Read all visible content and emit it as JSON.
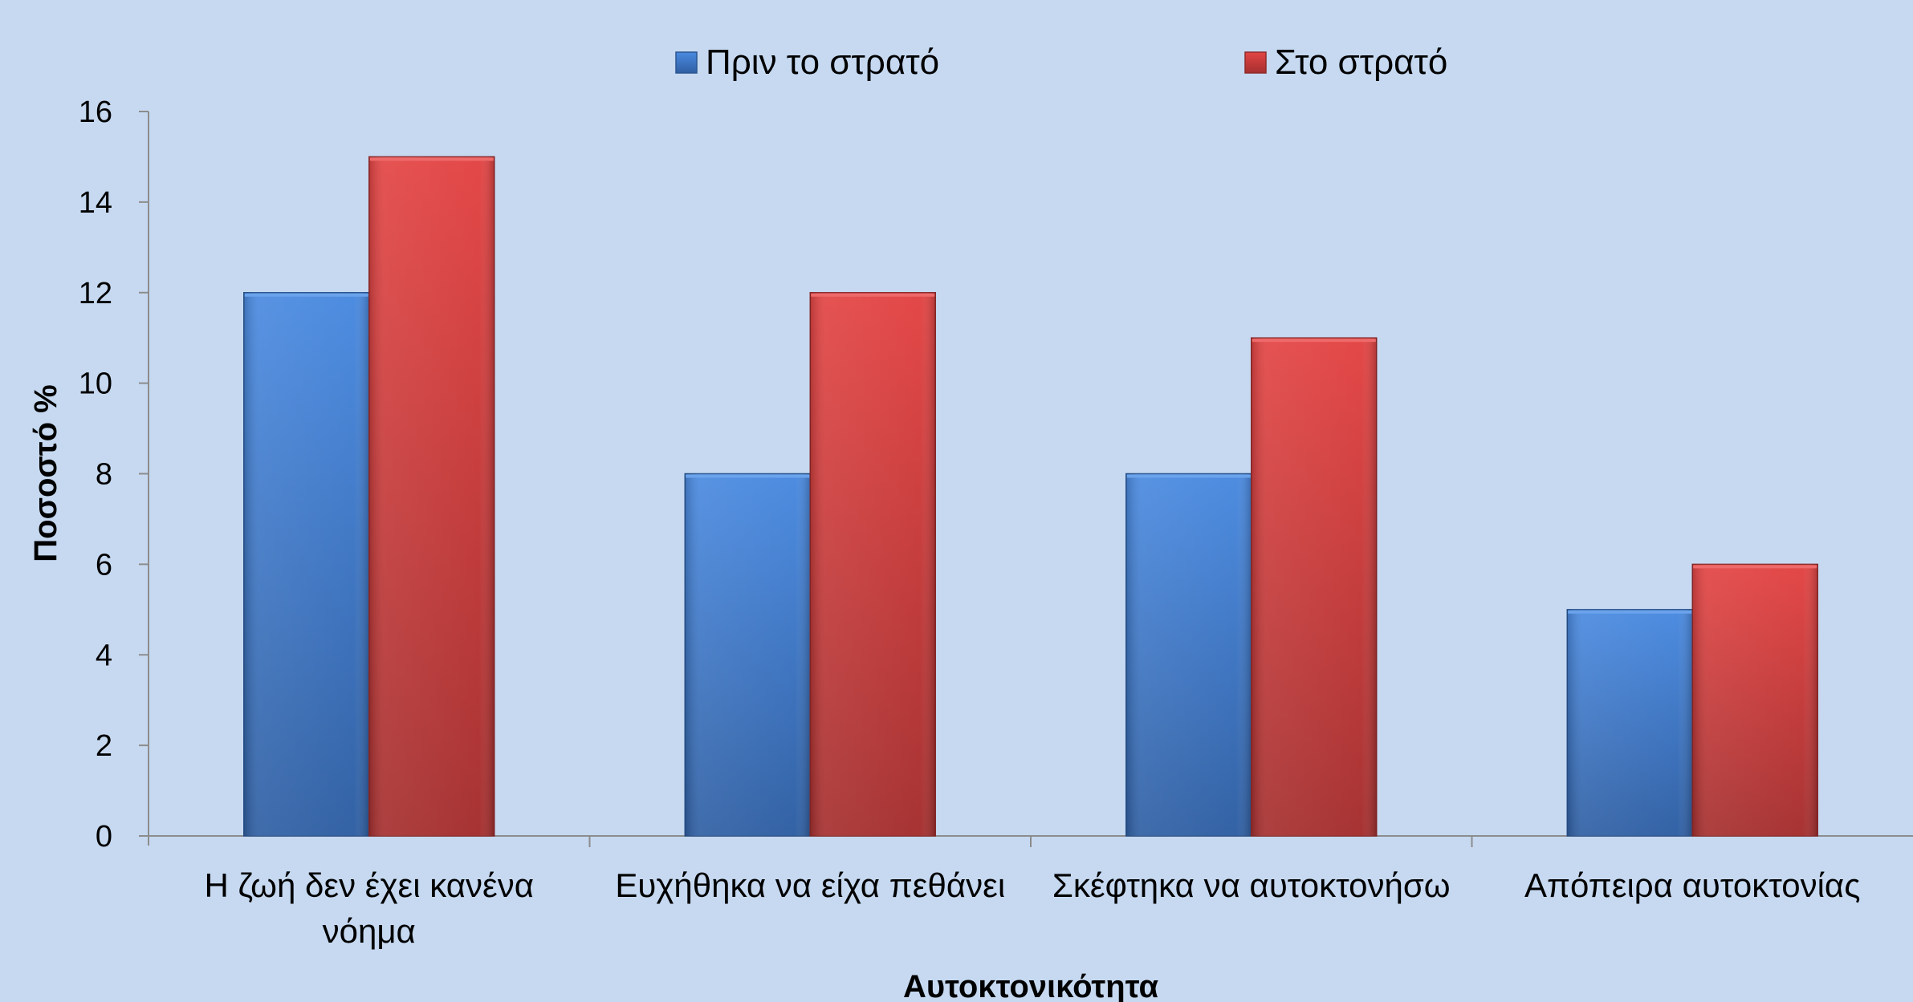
{
  "chart_data": {
    "type": "bar",
    "title": "",
    "xlabel": "Αυτοκτονικότητα",
    "ylabel": "Ποσοστό %",
    "ylim": [
      0,
      16
    ],
    "yticks": [
      0,
      2,
      4,
      6,
      8,
      10,
      12,
      14,
      16
    ],
    "grid": false,
    "legend": "top-center",
    "categories": [
      [
        "Η ζωή δεν έχει κανένα",
        "νόημα"
      ],
      [
        "Ευχήθηκα να είχα πεθάνει"
      ],
      [
        "Σκέφτηκα να αυτοκτονήσω"
      ],
      [
        "Απόπειρα αυτοκτονίας"
      ]
    ],
    "series": [
      {
        "name": "Πριν το στρατό",
        "color": "#3a78c9",
        "values": [
          12,
          8,
          8,
          5
        ]
      },
      {
        "name": "Στο στρατό",
        "color": "#d13b3b",
        "values": [
          15,
          12,
          11,
          6
        ]
      }
    ]
  }
}
